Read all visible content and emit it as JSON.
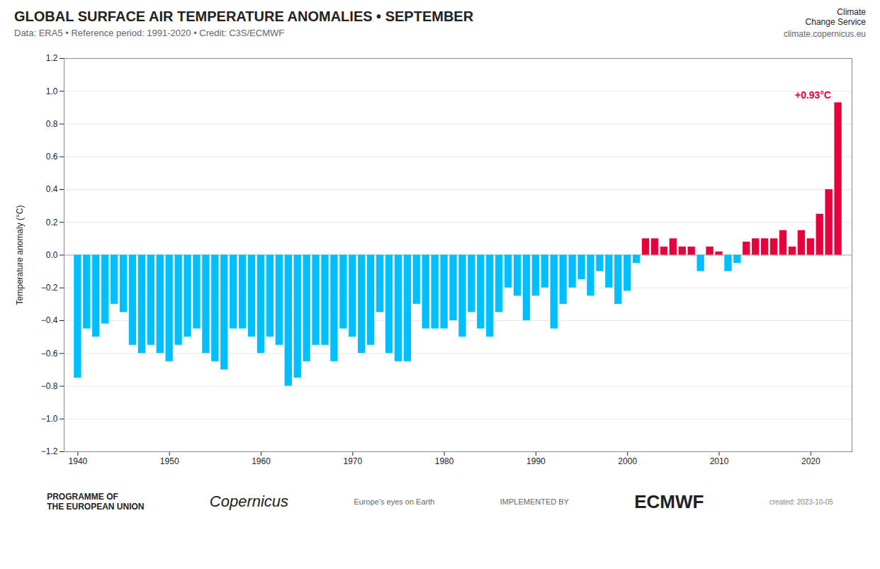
{
  "chart_data": {
    "type": "bar",
    "title": "GLOBAL SURFACE AIR TEMPERATURE ANOMALIES • SEPTEMBER",
    "subtitle": "Data: ERA5 • Reference period: 1991-2020 • Credit: C3S/ECMWF",
    "ylabel": "Temperature anomaly (°C)",
    "x": [
      1940,
      1941,
      1942,
      1943,
      1944,
      1945,
      1946,
      1947,
      1948,
      1949,
      1950,
      1951,
      1952,
      1953,
      1954,
      1955,
      1956,
      1957,
      1958,
      1959,
      1960,
      1961,
      1962,
      1963,
      1964,
      1965,
      1966,
      1967,
      1968,
      1969,
      1970,
      1971,
      1972,
      1973,
      1974,
      1975,
      1976,
      1977,
      1978,
      1979,
      1980,
      1981,
      1982,
      1983,
      1984,
      1985,
      1986,
      1987,
      1988,
      1989,
      1990,
      1991,
      1992,
      1993,
      1994,
      1995,
      1996,
      1997,
      1998,
      1999,
      2000,
      2001,
      2002,
      2003,
      2004,
      2005,
      2006,
      2007,
      2008,
      2009,
      2010,
      2011,
      2012,
      2013,
      2014,
      2015,
      2016,
      2017,
      2018,
      2019,
      2020,
      2021,
      2022,
      2023
    ],
    "values": [
      -0.75,
      -0.45,
      -0.5,
      -0.42,
      -0.3,
      -0.35,
      -0.55,
      -0.6,
      -0.55,
      -0.6,
      -0.65,
      -0.55,
      -0.5,
      -0.45,
      -0.6,
      -0.65,
      -0.7,
      -0.45,
      -0.45,
      -0.5,
      -0.6,
      -0.5,
      -0.55,
      -0.8,
      -0.75,
      -0.65,
      -0.55,
      -0.55,
      -0.65,
      -0.45,
      -0.5,
      -0.6,
      -0.55,
      -0.35,
      -0.6,
      -0.65,
      -0.65,
      -0.3,
      -0.45,
      -0.45,
      -0.45,
      -0.4,
      -0.5,
      -0.35,
      -0.45,
      -0.5,
      -0.35,
      -0.2,
      -0.25,
      -0.4,
      -0.25,
      -0.2,
      -0.45,
      -0.3,
      -0.2,
      -0.15,
      -0.25,
      -0.1,
      -0.2,
      -0.3,
      -0.22,
      -0.05,
      0.1,
      0.1,
      0.05,
      0.1,
      0.05,
      0.05,
      -0.1,
      0.05,
      0.02,
      -0.1,
      -0.05,
      0.08,
      0.1,
      0.1,
      0.1,
      0.15,
      0.05,
      0.15,
      0.1,
      0.25,
      0.4,
      0.93
    ],
    "colors": [
      "#00bfff",
      "#00bfff",
      "#00bfff",
      "#00bfff",
      "#00bfff",
      "#00bfff",
      "#00bfff",
      "#00bfff",
      "#00bfff",
      "#00bfff",
      "#00bfff",
      "#00bfff",
      "#00bfff",
      "#00bfff",
      "#00bfff",
      "#00bfff",
      "#00bfff",
      "#00bfff",
      "#00bfff",
      "#00bfff",
      "#00bfff",
      "#00bfff",
      "#00bfff",
      "#00bfff",
      "#00bfff",
      "#00bfff",
      "#00bfff",
      "#00bfff",
      "#00bfff",
      "#00bfff",
      "#00bfff",
      "#00bfff",
      "#00bfff",
      "#00bfff",
      "#00bfff",
      "#00bfff",
      "#00bfff",
      "#00bfff",
      "#00bfff",
      "#00bfff",
      "#00bfff",
      "#00bfff",
      "#00bfff",
      "#00bfff",
      "#00bfff",
      "#00bfff",
      "#00bfff",
      "#00bfff",
      "#00bfff",
      "#00bfff",
      "#00bfff",
      "#00bfff",
      "#00bfff",
      "#00bfff",
      "#00bfff",
      "#00bfff",
      "#00bfff",
      "#00bfff",
      "#00bfff",
      "#00bfff",
      "#00bfff",
      "#00bfff",
      "#e8003c",
      "#e8003c",
      "#e8003c",
      "#e8003c",
      "#e8003c",
      "#e8003c",
      "#00bfff",
      "#e8003c",
      "#e8003c",
      "#00bfff",
      "#00bfff",
      "#e8003c",
      "#e8003c",
      "#e8003c",
      "#e8003c",
      "#e8003c",
      "#e8003c",
      "#e8003c",
      "#e8003c",
      "#e8003c",
      "#e8003c",
      "#e8003c"
    ],
    "xlim": [
      1938.5,
      2024.5
    ],
    "xticks": [
      1940,
      1950,
      1960,
      1970,
      1980,
      1990,
      2000,
      2010,
      2020
    ],
    "ylim": [
      -1.2,
      1.2
    ],
    "yticks": [
      -1.2,
      {
        "value": -1.0,
        "label": "−1.0"
      },
      -0.8,
      -0.6,
      -0.4,
      -0.2,
      {
        "value": 0.0,
        "label": "0.0"
      },
      0.2,
      0.4,
      0.6,
      0.8,
      {
        "value": 1.0,
        "label": "1.0"
      },
      1.2
    ],
    "grid": true,
    "annotations": [
      {
        "text": "+0.93°C",
        "x": 2023,
        "y": 0.93,
        "color": "#e8003c"
      }
    ],
    "header_texts": [
      "Climate\nChange Service",
      "climate.copernicus.eu"
    ],
    "footer_texts": [
      "PROGRAMME OF\nTHE EUROPEAN UNION",
      "Copernicus",
      "Europe's eyes on Earth",
      "IMPLEMENTED BY",
      "ECMWF"
    ],
    "created_text": "created: 2023-10-05"
  }
}
